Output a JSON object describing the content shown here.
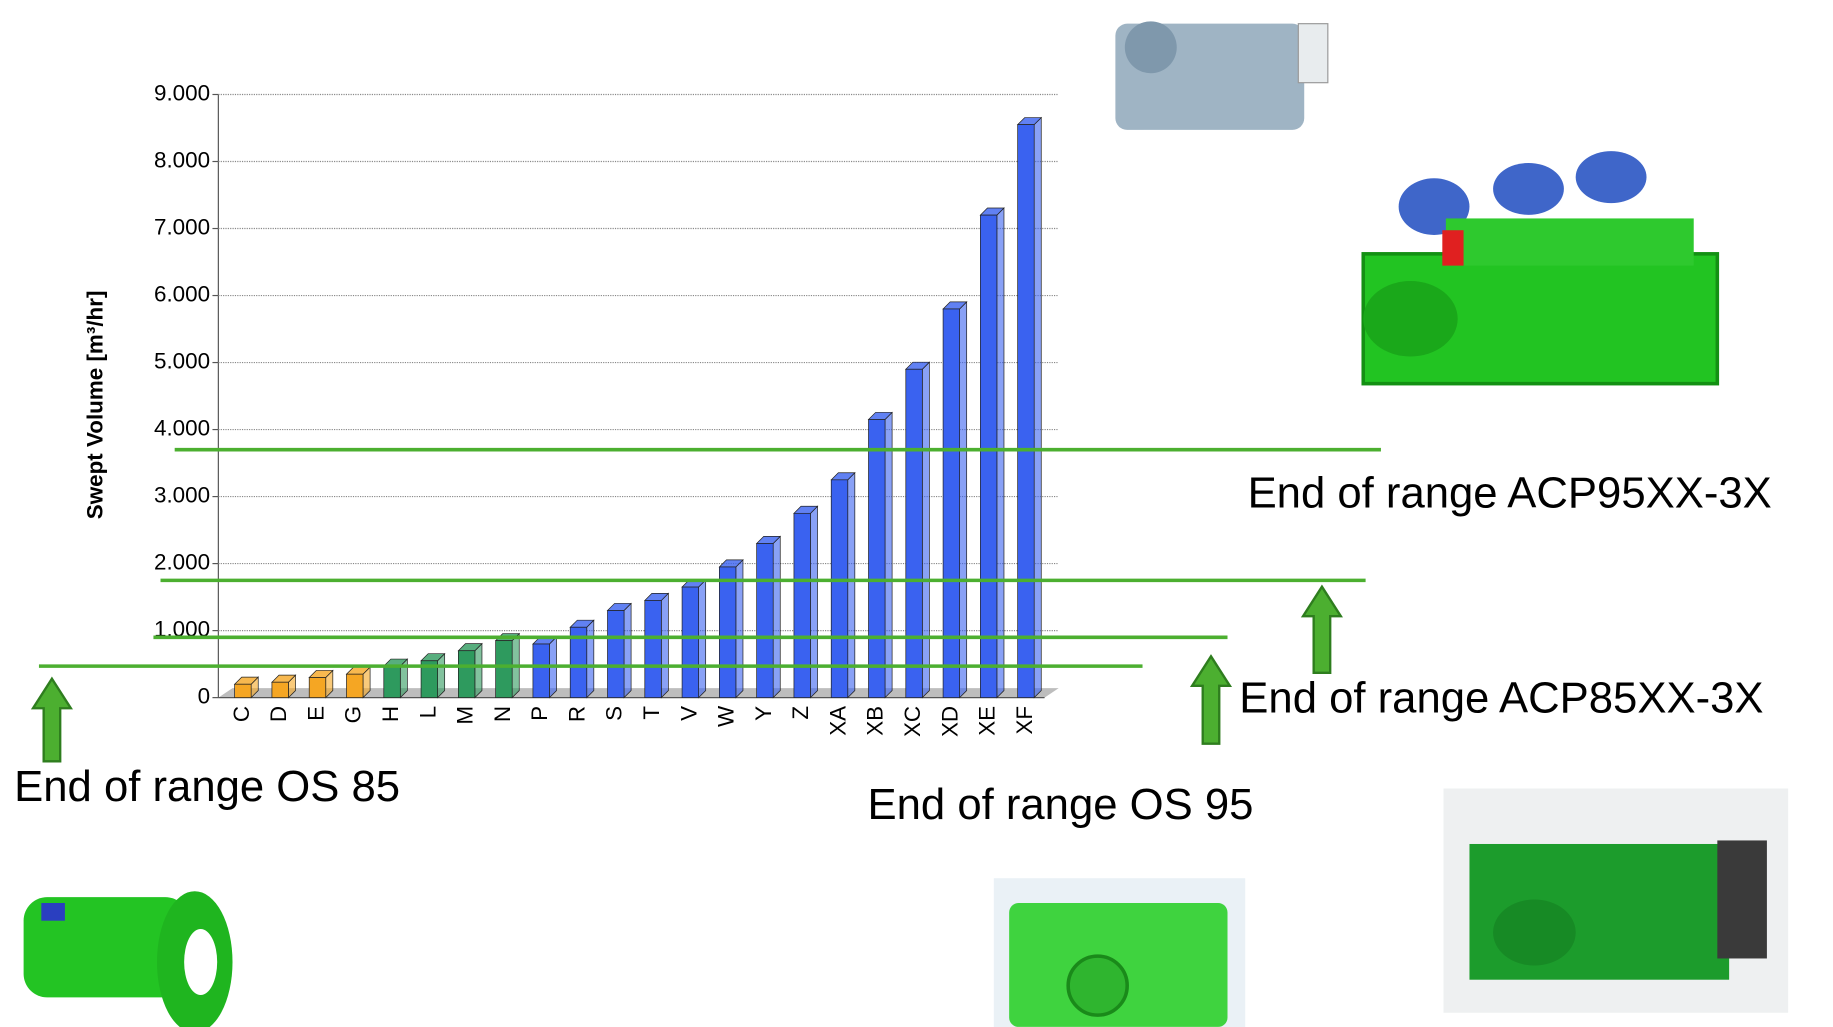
{
  "chart_data": {
    "type": "bar",
    "y_label": "Swept Volume [m³/hr]",
    "categories": [
      "C",
      "D",
      "E",
      "G",
      "H",
      "L",
      "M",
      "N",
      "P",
      "R",
      "S",
      "T",
      "V",
      "W",
      "Y",
      "Z",
      "XA",
      "XB",
      "XC",
      "XD",
      "XE",
      "XF"
    ],
    "values": [
      200,
      230,
      300,
      350,
      470,
      550,
      700,
      850,
      800,
      1050,
      1300,
      1450,
      1650,
      1950,
      2300,
      2750,
      3250,
      4150,
      4900,
      5800,
      7200,
      8550
    ],
    "colors": [
      "#f5a623",
      "#f5a623",
      "#f5a623",
      "#f5a623",
      "#2e9a5e",
      "#2e9a5e",
      "#2e9a5e",
      "#2e9a5e",
      "#3a62f0",
      "#3a62f0",
      "#3a62f0",
      "#3a62f0",
      "#3a62f0",
      "#3a62f0",
      "#3a62f0",
      "#3a62f0",
      "#3a62f0",
      "#3a62f0",
      "#3a62f0",
      "#3a62f0",
      "#3a62f0",
      "#3a62f0"
    ],
    "ylim": [
      0,
      9000
    ],
    "yticks": [
      0,
      {
        "value": 1000,
        "label": "1.000"
      },
      {
        "value": 2000,
        "label": "2.000"
      },
      {
        "value": 3000,
        "label": "3.000"
      },
      {
        "value": 4000,
        "label": "4.000"
      },
      {
        "value": 5000,
        "label": "5.000"
      },
      {
        "value": 6000,
        "label": "6.000"
      },
      {
        "value": 7000,
        "label": "7.000"
      },
      {
        "value": 8000,
        "label": "8.000"
      },
      {
        "value": 9000,
        "label": "9.000"
      }
    ],
    "grid": true,
    "reference_lines": [
      {
        "label": "End of range ACP95XX-3X",
        "value": 3700
      },
      {
        "label": "End of range ACP85XX-3X",
        "value": 1750
      },
      {
        "label": "End of range OS 95",
        "value": 900
      },
      {
        "label": "End of range OS 85",
        "value": 470
      }
    ],
    "reference_color": "#4caf30"
  }
}
